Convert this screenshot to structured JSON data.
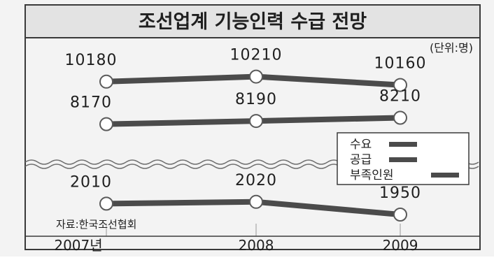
{
  "chart_data": {
    "type": "line",
    "title": "조선업계 기능인력 수급 전망",
    "unit_label": "(단위:명)",
    "source": "자료:한국조선협회",
    "categories": [
      "2007년",
      "2008",
      "2009"
    ],
    "series": [
      {
        "name": "수요",
        "values": [
          10180,
          10210,
          10160
        ]
      },
      {
        "name": "공급",
        "values": [
          8170,
          8190,
          8210
        ]
      },
      {
        "name": "부족인원",
        "values": [
          2010,
          2020,
          1950
        ]
      }
    ],
    "axis_break": true,
    "grid": false,
    "legend_position": "right"
  },
  "colors": {
    "background": "#f3f3f3",
    "title_bar": "#e3e3e3",
    "line": "#4b4b4b",
    "marker_fill": "#ffffff",
    "text": "#1f1f1f"
  }
}
